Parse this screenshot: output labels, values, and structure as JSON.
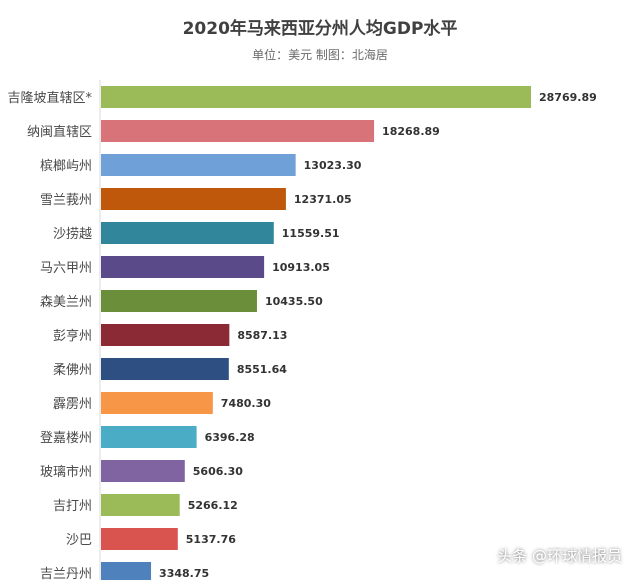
{
  "chart_data": {
    "type": "bar",
    "orientation": "horizontal",
    "title": "2020年马来西亚分州人均GDP水平",
    "subtitle": "单位：美元 制图：北海居",
    "categories": [
      "吉隆坡直辖区*",
      "纳闽直辖区",
      "槟榔屿州",
      "雪兰莪州",
      "沙捞越",
      "马六甲州",
      "森美兰州",
      "彭亨州",
      "柔佛州",
      "霹雳州",
      "登嘉楼州",
      "玻璃市州",
      "吉打州",
      "沙巴",
      "吉兰丹州"
    ],
    "values": [
      28769.89,
      18268.89,
      13023.3,
      12371.05,
      11559.51,
      10913.05,
      10435.5,
      8587.13,
      8551.64,
      7480.3,
      6396.28,
      5606.3,
      5266.12,
      5137.76,
      3348.75
    ],
    "value_labels": [
      "28769.89",
      "18268.89",
      "13023.30",
      "12371.05",
      "11559.51",
      "10913.05",
      "10435.50",
      "8587.13",
      "8551.64",
      "7480.30",
      "6396.28",
      "5606.30",
      "5266.12",
      "5137.76",
      "3348.75"
    ],
    "colors": [
      "#9BBB59",
      "#D9737A",
      "#6FA0D8",
      "#C0580B",
      "#31869B",
      "#5B4A8A",
      "#6B8E3A",
      "#8B2A35",
      "#2E4F82",
      "#F79646",
      "#4BACC6",
      "#8064A2",
      "#9BBB59",
      "#D9534F",
      "#4F81BD"
    ],
    "xlim": [
      0,
      28769.89
    ],
    "grid": false,
    "legend": "none"
  },
  "watermark": "头条 @环球情报员"
}
